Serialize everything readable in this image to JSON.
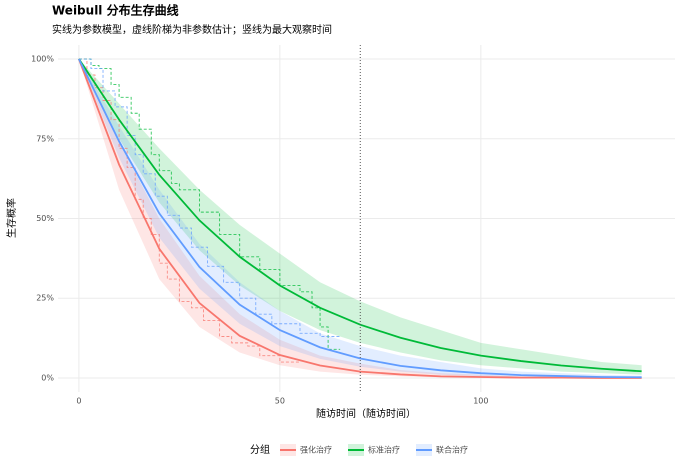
{
  "chart_data": {
    "type": "survival",
    "title": "Weibull 分布生存曲线",
    "subtitle": "实线为参数模型，虚线阶梯为非参数估计；竖线为最大观察时间",
    "x_label": "随访时间（随访时间）",
    "y_label": "生存概率",
    "legend_title": "分组",
    "xlim": [
      -5.2,
      148.3
    ],
    "ylim": [
      -4.4,
      104.4
    ],
    "xticks": [
      0,
      50,
      100
    ],
    "yticks": [
      {
        "value": 0,
        "label": "0%"
      },
      {
        "value": 25,
        "label": "25%"
      },
      {
        "value": 50,
        "label": "50%"
      },
      {
        "value": 75,
        "label": "75%"
      },
      {
        "value": 100,
        "label": "100%"
      }
    ],
    "grid": true,
    "vline": 70,
    "x": [
      0,
      10,
      20,
      30,
      40,
      50,
      60,
      70,
      80,
      90,
      100,
      110,
      120,
      130,
      140
    ],
    "series": [
      {
        "name": "强化治疗",
        "color": "#F8766D",
        "values": [
          100,
          66.9,
          40.5,
          23.5,
          13.2,
          7.2,
          3.9,
          2.0,
          1.1,
          0.5,
          0.3,
          0.1,
          0.1,
          0,
          0
        ],
        "upper": [
          100,
          74,
          50,
          32,
          20,
          12,
          7,
          4.5,
          2.5,
          1.5,
          1,
          0.5,
          0.3,
          0.2,
          0.1
        ],
        "lower": [
          100,
          59,
          31,
          16,
          8,
          4,
          2,
          1,
          0.5,
          0.2,
          0.1,
          0,
          0,
          0,
          0
        ],
        "km_x": [
          0,
          2,
          4,
          6,
          8,
          10,
          12,
          14,
          16,
          18,
          20,
          22,
          25,
          28,
          31,
          35,
          38,
          42,
          45,
          50,
          55
        ],
        "km_values": [
          100,
          95,
          91,
          87,
          81,
          72,
          66,
          56,
          50,
          45,
          36,
          31,
          24,
          22,
          18,
          13,
          11,
          10,
          7,
          5,
          5
        ]
      },
      {
        "name": "标准治疗",
        "color": "#00BA38",
        "values": [
          100,
          81,
          63.7,
          49.4,
          38,
          29,
          22,
          16.7,
          12.6,
          9.4,
          7,
          5.3,
          3.9,
          2.9,
          2.1
        ],
        "upper": [
          100,
          86,
          72,
          59,
          48,
          39,
          30,
          24,
          19,
          15,
          11,
          9,
          7,
          5,
          4
        ],
        "lower": [
          100,
          75,
          55,
          40,
          29,
          21,
          15,
          11,
          8,
          5.5,
          4,
          3,
          2,
          1.5,
          1
        ],
        "km_x": [
          0,
          3,
          5,
          8,
          10,
          13,
          15,
          18,
          20,
          23,
          25,
          30,
          35,
          40,
          45,
          50,
          55,
          58,
          60,
          62,
          65
        ],
        "km_values": [
          100,
          98,
          97,
          92,
          88,
          83,
          78,
          70,
          65,
          61,
          59,
          52,
          45,
          38,
          34,
          29,
          27,
          22,
          16,
          9,
          9
        ]
      },
      {
        "name": "联合治疗",
        "color": "#619CFF",
        "values": [
          100,
          74.2,
          51.6,
          34.8,
          23,
          15,
          9.6,
          6.1,
          3.8,
          2.4,
          1.5,
          0.9,
          0.6,
          0.3,
          0.2
        ],
        "upper": [
          100,
          79,
          59,
          42,
          30,
          21,
          14,
          10,
          7,
          5,
          3,
          2,
          1.5,
          1,
          0.7
        ],
        "lower": [
          100,
          69,
          44,
          28,
          17,
          10,
          6,
          3.5,
          2,
          1,
          0.6,
          0.3,
          0.2,
          0.1,
          0
        ],
        "km_x": [
          0,
          3,
          6,
          9,
          12,
          14,
          16,
          19,
          22,
          25,
          28,
          32,
          36,
          40,
          44,
          48,
          55,
          60,
          65
        ],
        "km_values": [
          100,
          97,
          90,
          85,
          76,
          70,
          64,
          57,
          51,
          47,
          41,
          35,
          30,
          25,
          20,
          17,
          14,
          13,
          13
        ]
      }
    ]
  }
}
